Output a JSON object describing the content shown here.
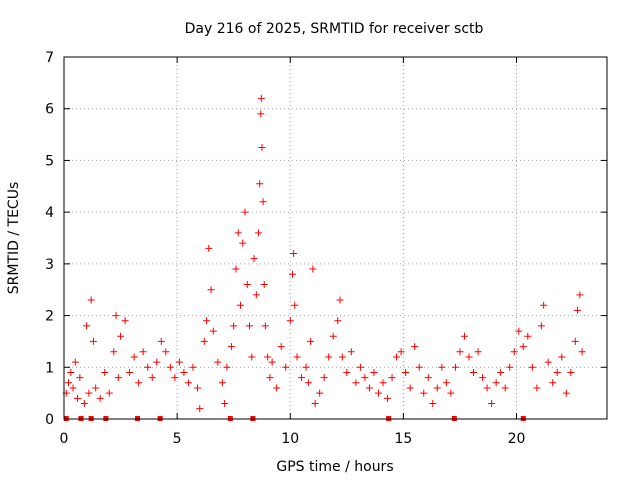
{
  "chart_data": {
    "type": "scatter",
    "title": "Day 216 of 2025, SRMTID for receiver sctb",
    "xlabel": "GPS time / hours",
    "ylabel": "SRMTID / TECUs",
    "xlim": [
      0,
      24
    ],
    "ylim": [
      0,
      7
    ],
    "xticks": [
      0,
      5,
      10,
      15,
      20
    ],
    "yticks": [
      0,
      1,
      2,
      3,
      4,
      5,
      6,
      7
    ],
    "grid": true,
    "marker": "plus",
    "color": "#ff0000",
    "series": [
      {
        "name": "SRMTID",
        "points": [
          [
            0.1,
            0.5
          ],
          [
            0.2,
            0.7
          ],
          [
            0.3,
            0.9
          ],
          [
            0.4,
            0.6
          ],
          [
            0.5,
            1.1
          ],
          [
            0.6,
            0.4
          ],
          [
            0.7,
            0.8
          ],
          [
            0.9,
            0.3
          ],
          [
            1.0,
            1.8
          ],
          [
            1.1,
            0.5
          ],
          [
            1.2,
            2.3
          ],
          [
            1.3,
            1.5
          ],
          [
            1.4,
            0.6
          ],
          [
            1.6,
            0.4
          ],
          [
            1.8,
            0.9
          ],
          [
            2.0,
            0.5
          ],
          [
            2.2,
            1.3
          ],
          [
            2.3,
            2.0
          ],
          [
            2.4,
            0.8
          ],
          [
            2.5,
            1.6
          ],
          [
            2.7,
            1.9
          ],
          [
            2.9,
            0.9
          ],
          [
            3.1,
            1.2
          ],
          [
            3.3,
            0.7
          ],
          [
            3.5,
            1.3
          ],
          [
            3.7,
            1.0
          ],
          [
            3.9,
            0.8
          ],
          [
            4.1,
            1.1
          ],
          [
            4.3,
            1.5
          ],
          [
            4.5,
            1.3
          ],
          [
            4.7,
            1.0
          ],
          [
            4.9,
            0.8
          ],
          [
            5.1,
            1.1
          ],
          [
            5.3,
            0.9
          ],
          [
            5.5,
            0.7
          ],
          [
            5.7,
            1.0
          ],
          [
            5.9,
            0.6
          ],
          [
            6.0,
            0.2
          ],
          [
            6.2,
            1.5
          ],
          [
            6.3,
            1.9
          ],
          [
            6.4,
            3.3
          ],
          [
            6.5,
            2.5
          ],
          [
            6.6,
            1.7
          ],
          [
            6.8,
            1.1
          ],
          [
            7.0,
            0.7
          ],
          [
            7.1,
            0.3
          ],
          [
            7.2,
            1.0
          ],
          [
            7.4,
            1.4
          ],
          [
            7.5,
            1.8
          ],
          [
            7.6,
            2.9
          ],
          [
            7.7,
            3.6
          ],
          [
            7.8,
            2.2
          ],
          [
            7.9,
            3.4
          ],
          [
            8.0,
            4.0
          ],
          [
            8.1,
            2.6
          ],
          [
            8.2,
            1.8
          ],
          [
            8.3,
            1.2
          ],
          [
            8.4,
            3.1
          ],
          [
            8.5,
            2.4
          ],
          [
            8.6,
            3.6
          ],
          [
            8.65,
            4.55
          ],
          [
            8.7,
            5.9
          ],
          [
            8.72,
            6.2
          ],
          [
            8.75,
            5.25
          ],
          [
            8.8,
            4.2
          ],
          [
            8.85,
            2.6
          ],
          [
            8.9,
            1.8
          ],
          [
            9.0,
            1.2
          ],
          [
            9.1,
            0.8
          ],
          [
            9.2,
            1.1
          ],
          [
            9.4,
            0.6
          ],
          [
            9.6,
            1.4
          ],
          [
            9.8,
            1.0
          ],
          [
            10.0,
            1.9
          ],
          [
            10.1,
            2.8
          ],
          [
            10.15,
            3.2
          ],
          [
            10.2,
            2.2
          ],
          [
            10.3,
            1.2
          ],
          [
            10.5,
            0.8
          ],
          [
            10.7,
            1.0
          ],
          [
            10.8,
            0.7
          ],
          [
            10.9,
            1.5
          ],
          [
            11.0,
            2.9
          ],
          [
            11.1,
            0.3
          ],
          [
            11.3,
            0.5
          ],
          [
            11.5,
            0.8
          ],
          [
            11.7,
            1.2
          ],
          [
            11.9,
            1.6
          ],
          [
            12.1,
            1.9
          ],
          [
            12.2,
            2.3
          ],
          [
            12.3,
            1.2
          ],
          [
            12.5,
            0.9
          ],
          [
            12.7,
            1.3
          ],
          [
            12.9,
            0.7
          ],
          [
            13.1,
            1.0
          ],
          [
            13.3,
            0.8
          ],
          [
            13.5,
            0.6
          ],
          [
            13.7,
            0.9
          ],
          [
            13.9,
            0.5
          ],
          [
            14.1,
            0.7
          ],
          [
            14.3,
            0.4
          ],
          [
            14.5,
            0.8
          ],
          [
            14.7,
            1.2
          ],
          [
            14.9,
            1.3
          ],
          [
            15.1,
            0.9
          ],
          [
            15.3,
            0.6
          ],
          [
            15.5,
            1.4
          ],
          [
            15.7,
            1.0
          ],
          [
            15.9,
            0.5
          ],
          [
            16.1,
            0.8
          ],
          [
            16.3,
            0.3
          ],
          [
            16.5,
            0.6
          ],
          [
            16.7,
            1.0
          ],
          [
            16.9,
            0.7
          ],
          [
            17.1,
            0.5
          ],
          [
            17.3,
            1.0
          ],
          [
            17.5,
            1.3
          ],
          [
            17.7,
            1.6
          ],
          [
            17.9,
            1.2
          ],
          [
            18.1,
            0.9
          ],
          [
            18.3,
            1.3
          ],
          [
            18.5,
            0.8
          ],
          [
            18.7,
            0.6
          ],
          [
            18.9,
            0.3
          ],
          [
            19.1,
            0.7
          ],
          [
            19.3,
            0.9
          ],
          [
            19.5,
            0.6
          ],
          [
            19.7,
            1.0
          ],
          [
            19.9,
            1.3
          ],
          [
            20.1,
            1.7
          ],
          [
            20.3,
            1.4
          ],
          [
            20.5,
            1.6
          ],
          [
            20.7,
            1.0
          ],
          [
            20.9,
            0.6
          ],
          [
            21.1,
            1.8
          ],
          [
            21.2,
            2.2
          ],
          [
            21.4,
            1.1
          ],
          [
            21.6,
            0.7
          ],
          [
            21.8,
            0.9
          ],
          [
            22.0,
            1.2
          ],
          [
            22.2,
            0.5
          ],
          [
            22.4,
            0.9
          ],
          [
            22.6,
            1.5
          ],
          [
            22.7,
            2.1
          ],
          [
            22.8,
            2.4
          ],
          [
            22.9,
            1.3
          ]
        ]
      }
    ],
    "zero_markers": [
      0.1,
      0.75,
      1.2,
      1.85,
      3.25,
      4.25,
      7.35,
      8.35,
      14.35,
      17.25,
      20.3
    ]
  }
}
